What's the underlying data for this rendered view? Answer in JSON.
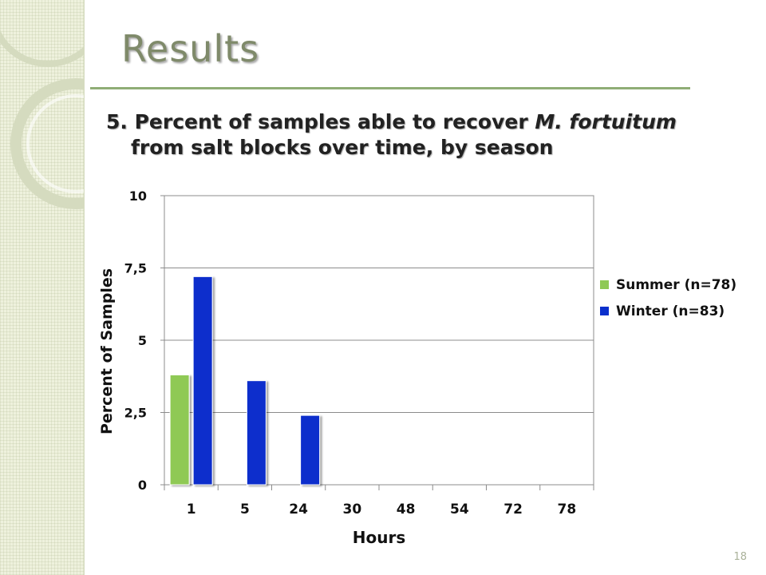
{
  "slide": {
    "title": "Results",
    "page_number": "18"
  },
  "chart_title": {
    "prefix": "5. Percent of samples able to recover ",
    "organism": "M. fortuitum",
    "line2": "from salt blocks over time, by season"
  },
  "colors": {
    "summer": "#8fc955",
    "winter": "#0a2fcc",
    "title": "#7f8a6a",
    "rule": "#8fad76"
  },
  "chart_data": {
    "type": "bar",
    "title": "5. Percent of samples able to recover M. fortuitum from salt blocks over time, by season",
    "xlabel": "Hours",
    "ylabel": "Percent of Samples",
    "categories": [
      "1",
      "5",
      "24",
      "30",
      "48",
      "54",
      "72",
      "78"
    ],
    "ylim": [
      0,
      10
    ],
    "yticks": [
      "0",
      "2,5",
      "5",
      "7,5",
      "10"
    ],
    "ytick_values": [
      0,
      2.5,
      5,
      7.5,
      10
    ],
    "grid": true,
    "legend": "right",
    "series": [
      {
        "name": "Summer (n=78)",
        "values": [
          3.8,
          0,
          0,
          0,
          0,
          0,
          0,
          0
        ]
      },
      {
        "name": "Winter (n=83)",
        "values": [
          7.2,
          3.6,
          2.4,
          0,
          0,
          0,
          0,
          0
        ]
      }
    ]
  }
}
